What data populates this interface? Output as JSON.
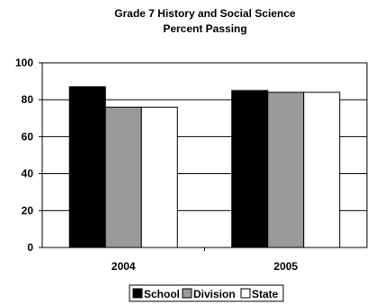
{
  "chart_data": {
    "type": "bar",
    "title": "Grade 7 History and Social Science",
    "subtitle": "Percent Passing",
    "xlabel": "",
    "ylabel": "",
    "categories": [
      "2004",
      "2005"
    ],
    "ylim": [
      0,
      100
    ],
    "yticks": [
      "0",
      "20",
      "40",
      "60",
      "80",
      "100"
    ],
    "grid": true,
    "legend_placement": "bottom-center",
    "series": [
      {
        "name": "School",
        "values": [
          87,
          85
        ],
        "color": "#000000"
      },
      {
        "name": "Division",
        "values": [
          76,
          84
        ],
        "color": "#999999"
      },
      {
        "name": "State",
        "values": [
          76,
          84
        ],
        "color": "#ffffff"
      }
    ]
  }
}
